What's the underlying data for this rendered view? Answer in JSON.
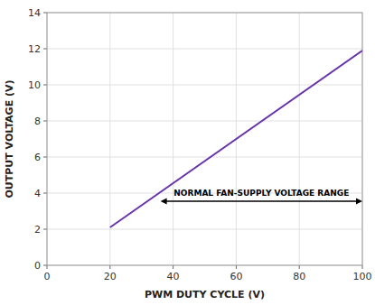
{
  "chart_data": {
    "type": "line",
    "x": [
      20,
      100
    ],
    "values": [
      2.1,
      11.9
    ],
    "color": "#6633AA",
    "xlim": [
      0,
      100
    ],
    "ylim": [
      0,
      14
    ],
    "xticks": [
      0,
      20,
      40,
      60,
      80,
      100
    ],
    "yticks": [
      0,
      2,
      4,
      6,
      8,
      10,
      12,
      14
    ],
    "xlabel": "PWM DUTY CYCLE (V)",
    "ylabel": "OUTPUT VOLTAGE (V)",
    "grid": true,
    "annotations": [
      {
        "text": "NORMAL FAN-SUPPLY VOLTAGE RANGE",
        "x_start": 36,
        "x_end": 100,
        "y": 3.55
      }
    ]
  }
}
